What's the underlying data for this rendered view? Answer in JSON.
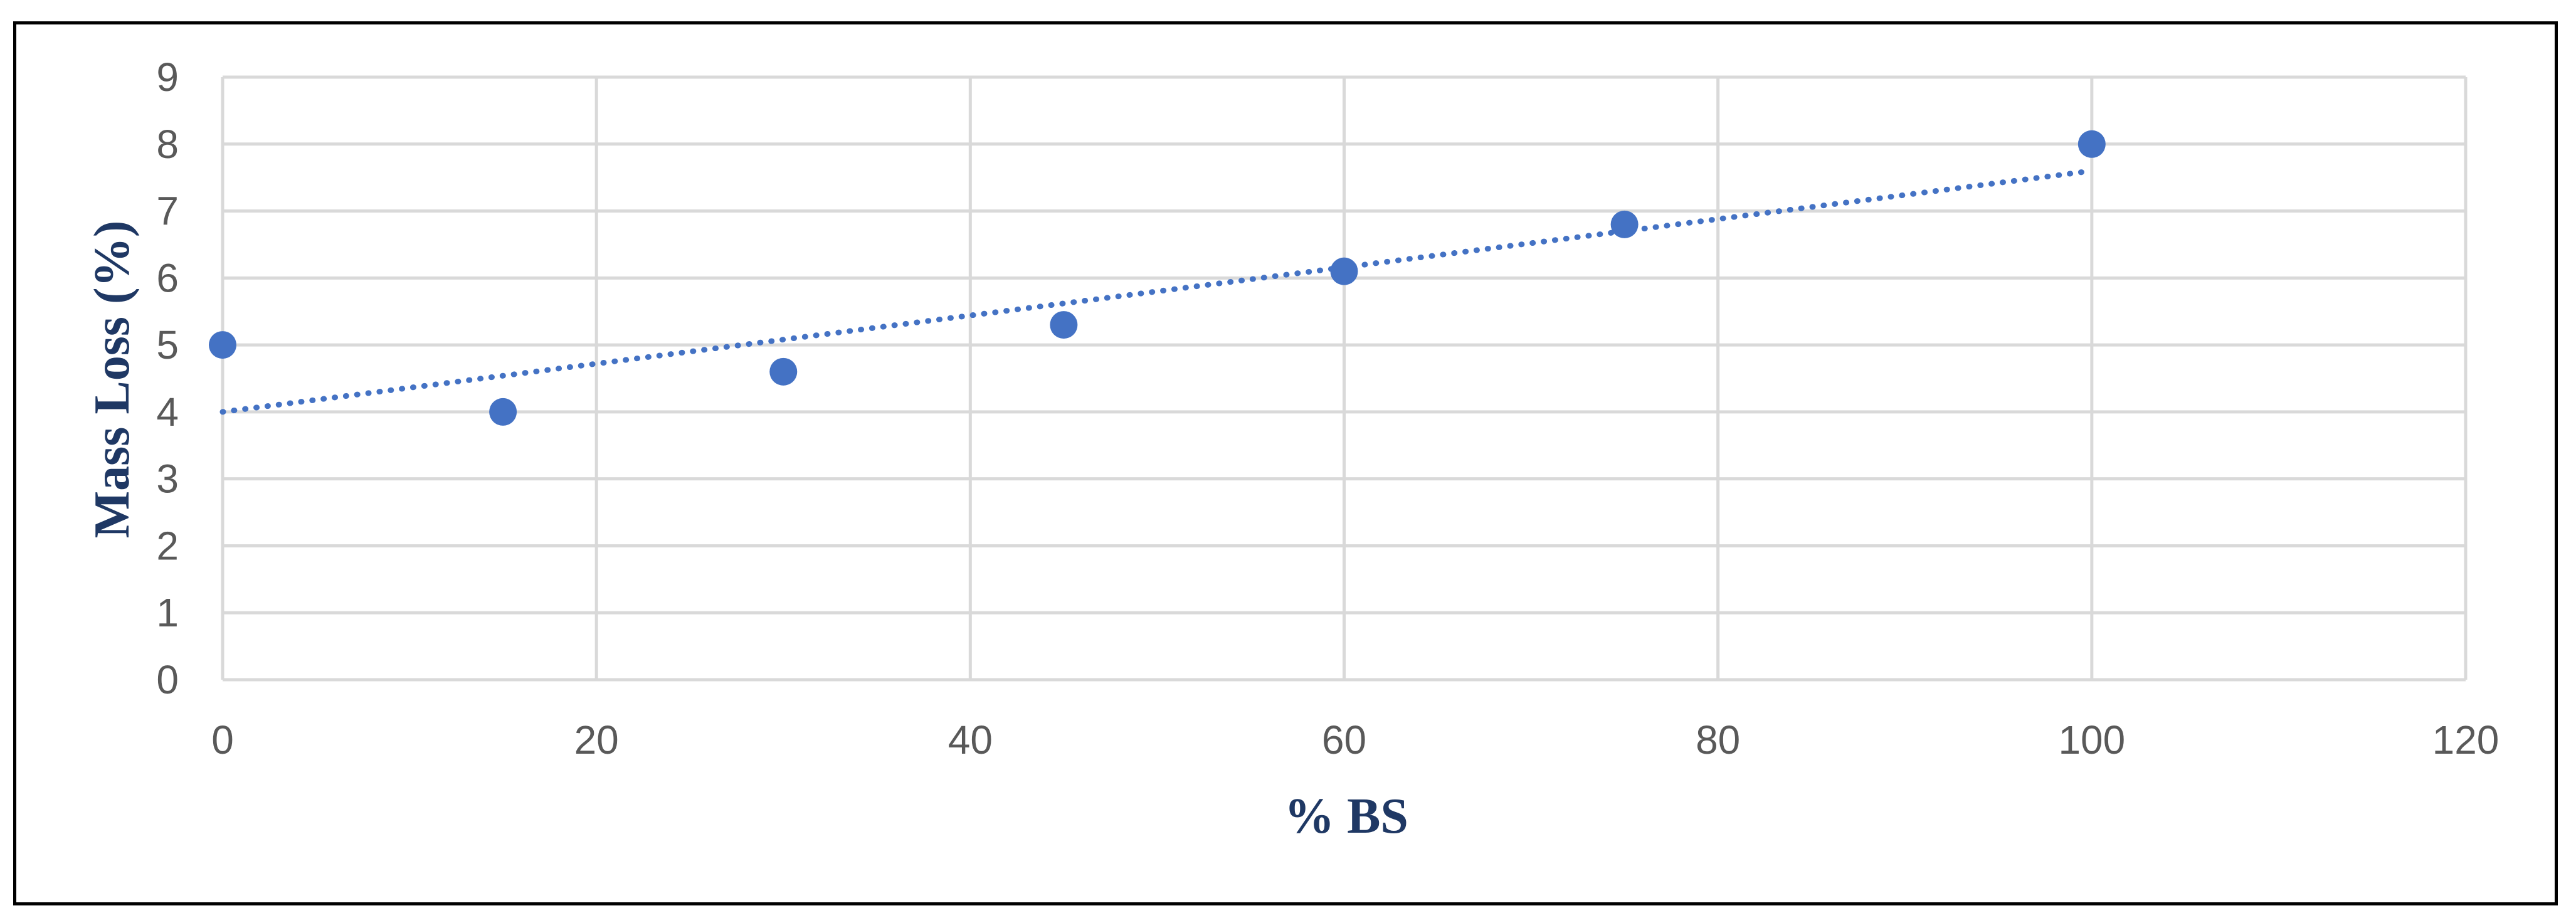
{
  "chart_data": {
    "type": "scatter",
    "title": "",
    "xlabel": "% BS",
    "ylabel": "Mass Loss (%)",
    "xlim": [
      0,
      120
    ],
    "ylim": [
      0,
      9
    ],
    "x_ticks": [
      "0",
      "20",
      "40",
      "60",
      "80",
      "100",
      "120"
    ],
    "y_ticks": [
      "0",
      "1",
      "2",
      "3",
      "4",
      "5",
      "6",
      "7",
      "8",
      "9"
    ],
    "grid": true,
    "legend": "none",
    "series": [
      {
        "x": [
          0,
          15,
          30,
          45,
          60,
          75,
          100
        ],
        "y": [
          5.0,
          4.0,
          4.6,
          5.3,
          6.1,
          6.8,
          8.0
        ],
        "marker_color": "#4472c4"
      }
    ],
    "trendline": {
      "type": "linear",
      "style": "dotted",
      "color": "#4472c4",
      "x_range": [
        0,
        100
      ],
      "y_range": [
        4.0,
        7.6
      ]
    }
  },
  "colors": {
    "grid": "#d9d9d9",
    "axis_title": "#1f3864",
    "tick_label": "#595959",
    "frame": "#000000"
  }
}
